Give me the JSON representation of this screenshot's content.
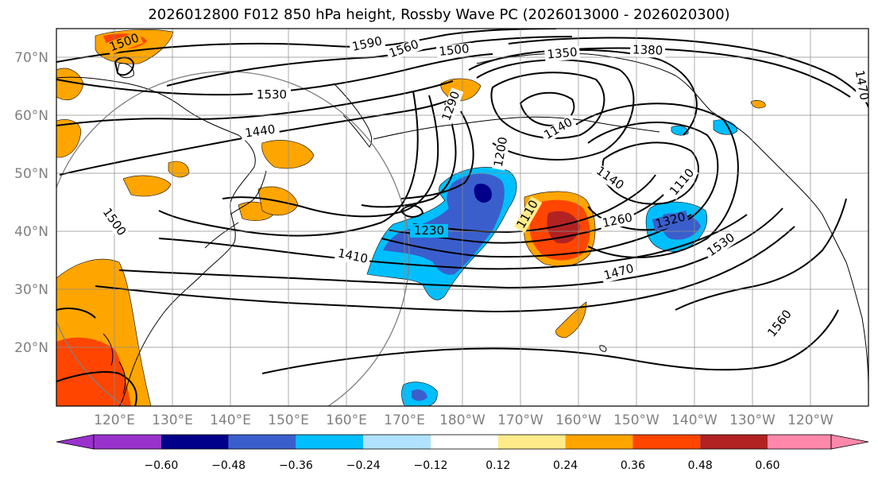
{
  "title": "2026012800 F012 850 hPa height, Rossby Wave PC (2026013000 - 2026020300)",
  "lat_labels": [
    "70°N",
    "60°N",
    "50°N",
    "40°N",
    "30°N",
    "20°N"
  ],
  "lon_labels": [
    "120°E",
    "130°E",
    "140°E",
    "150°E",
    "160°E",
    "170°E",
    "180°W",
    "170°W",
    "160°W",
    "150°W",
    "140°W",
    "130°W",
    "120°W"
  ],
  "contour_labels": [
    "1500",
    "1590",
    "1560",
    "1500",
    "1350",
    "1380",
    "1470",
    "1530",
    "1440",
    "1290",
    "1140",
    "1200",
    "1140",
    "1110",
    "1230",
    "1110",
    "1260",
    "1320",
    "1410",
    "1470",
    "1530",
    "1500",
    "1560"
  ],
  "colorbar": {
    "colors": [
      "#9932cc",
      "#00008b",
      "#3a5fcd",
      "#00bfff",
      "#b0e2ff",
      "#ffffff",
      "#ffeb8a",
      "#ffa500",
      "#ff4500",
      "#b22222",
      "#ff88aa"
    ],
    "tick_labels": [
      "−0.60",
      "−0.48",
      "−0.36",
      "−0.24",
      "−0.12",
      "0.12",
      "0.24",
      "0.36",
      "0.48",
      "0.60"
    ]
  },
  "colors": {
    "blue_light": "#00bfff",
    "blue_mid": "#3a5fcd",
    "navy": "#00008b",
    "orange": "#ffa500",
    "red_orange": "#ff4500",
    "dark_red": "#b22222",
    "yellow": "#ffeb8a"
  }
}
